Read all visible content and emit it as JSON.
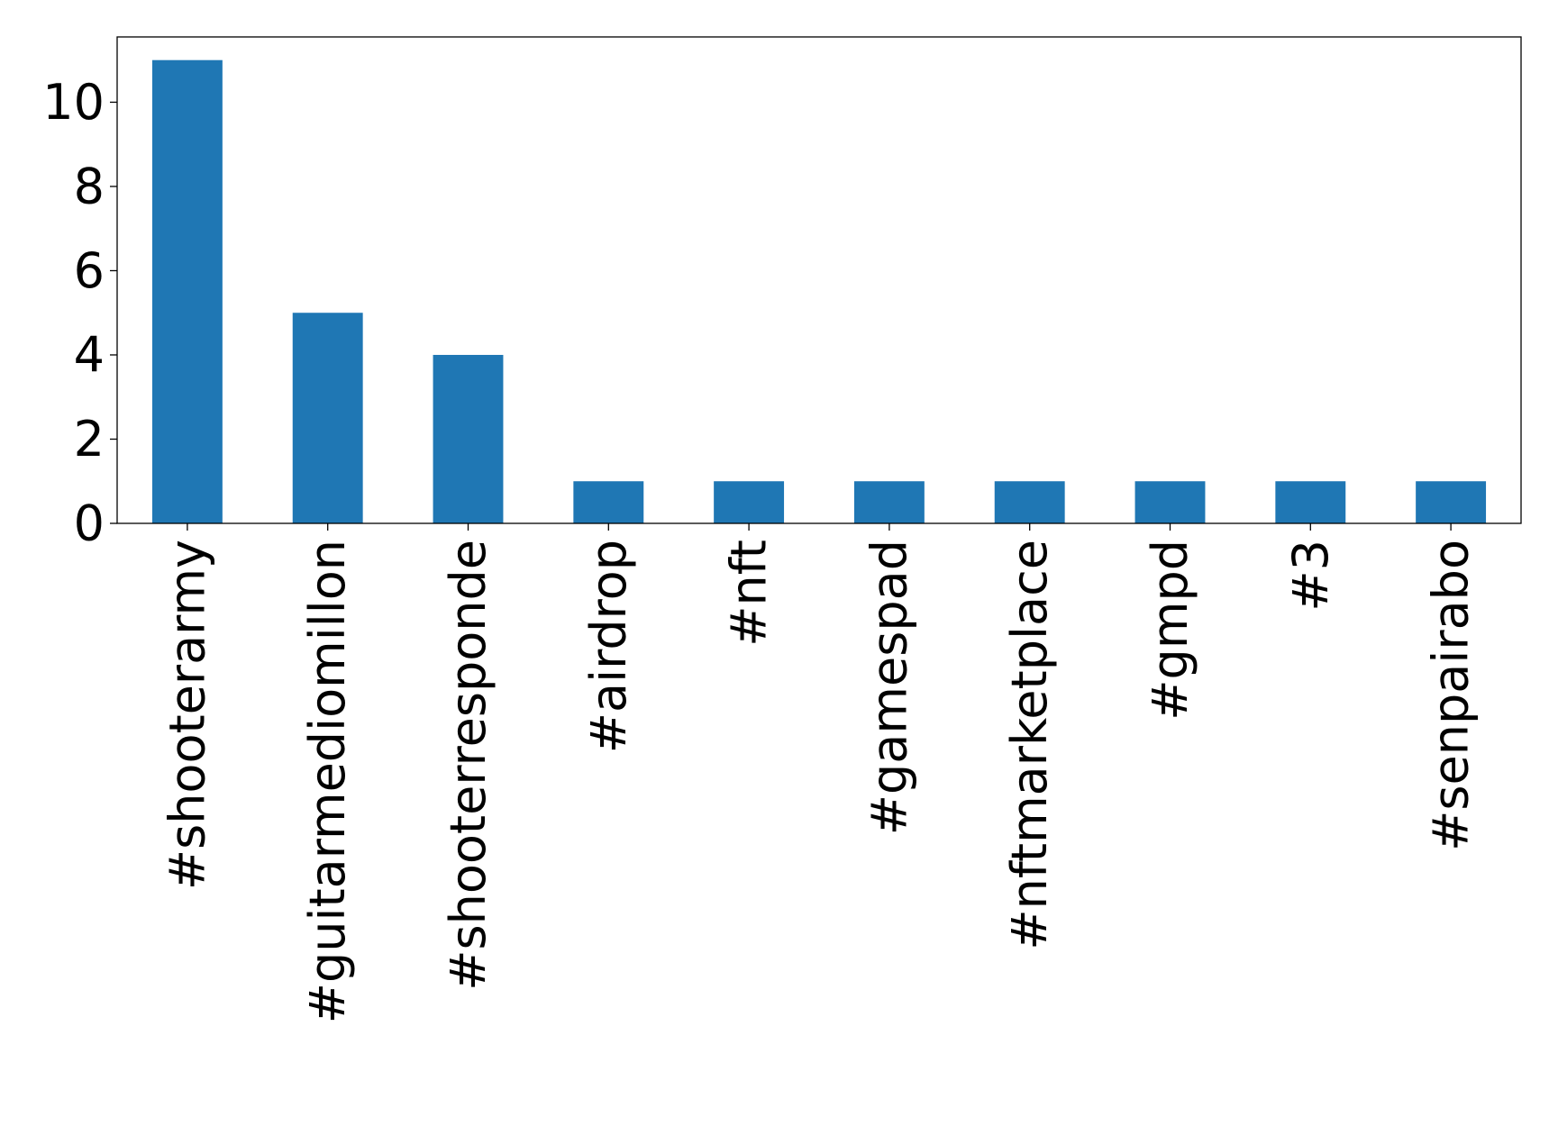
{
  "chart_data": {
    "type": "bar",
    "title": "",
    "xlabel": "",
    "ylabel": "",
    "categories": [
      "#shooterarmy",
      "#guitarmediomillon",
      "#shooterresponde",
      "#airdrop",
      "#nft",
      "#gamespad",
      "#nftmarketplace",
      "#gmpd",
      "#3",
      "#senpairabo"
    ],
    "values": [
      11,
      5,
      4,
      1,
      1,
      1,
      1,
      1,
      1,
      1
    ],
    "ylim": [
      0,
      11.55
    ],
    "yticks": [
      0,
      2,
      4,
      6,
      8,
      10
    ],
    "grid": false,
    "legend": "none",
    "bar_color": "#1f77b4"
  }
}
